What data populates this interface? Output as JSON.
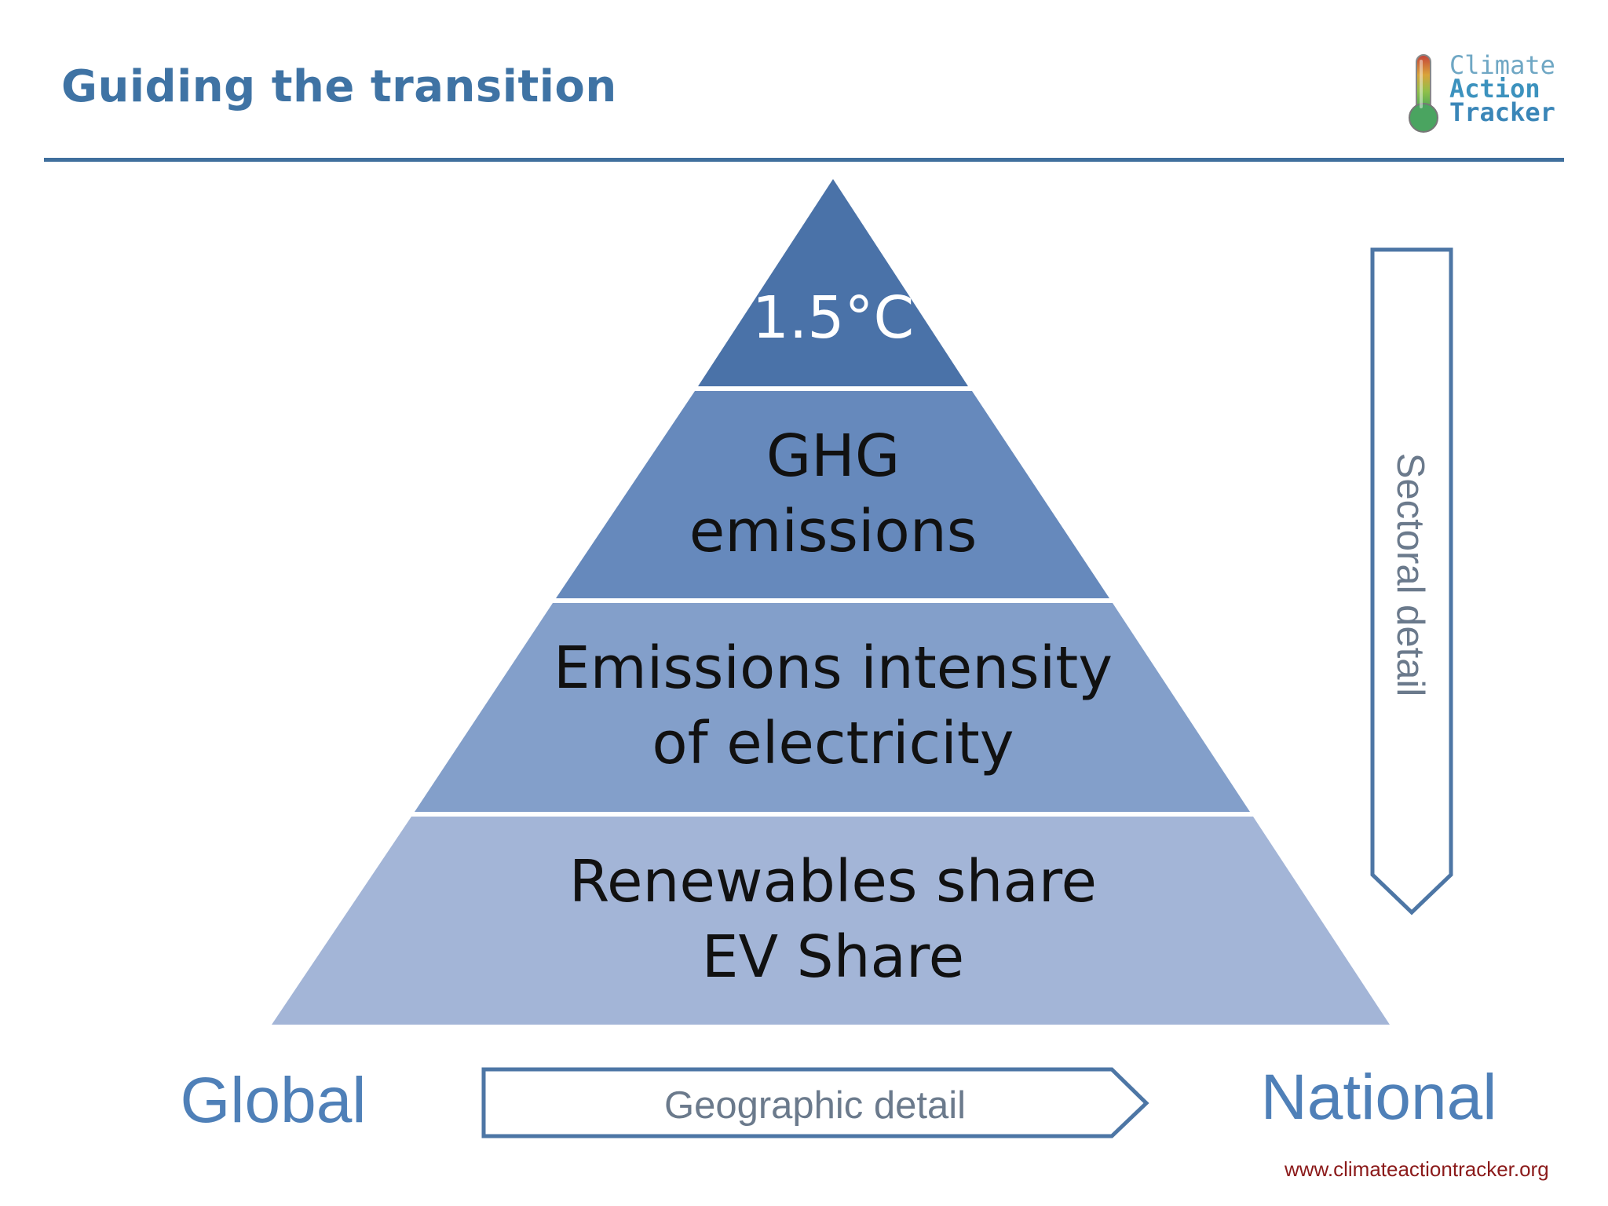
{
  "slide": {
    "title": "Guiding the transition",
    "footer_url": "www.climateactiontracker.org"
  },
  "logo": {
    "line1": "Climate",
    "line2": "Action",
    "line3": "Tracker"
  },
  "pyramid": {
    "levels": [
      {
        "lines": [
          "1.5°C"
        ],
        "color": "#4a72a8",
        "text_color": "#ffffff"
      },
      {
        "lines": [
          "GHG",
          "emissions"
        ],
        "color": "#6689bc",
        "text_color": "#111111"
      },
      {
        "lines": [
          "Emissions intensity",
          "of electricity"
        ],
        "color": "#839fca",
        "text_color": "#111111"
      },
      {
        "lines": [
          "Renewables share",
          "EV Share"
        ],
        "color": "#a3b5d7",
        "text_color": "#111111"
      }
    ]
  },
  "axes": {
    "left_label": "Global",
    "right_label": "National",
    "horizontal_arrow_label": "Geographic detail",
    "vertical_arrow_label": "Sectoral detail",
    "arrow_stroke_color": "#4d76a5"
  }
}
